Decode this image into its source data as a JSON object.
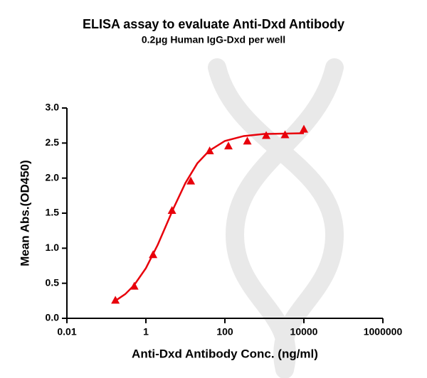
{
  "chart_data": {
    "type": "scatter",
    "title": "ELISA assay to evaluate Anti-Dxd Antibody",
    "subtitle": "0.2μg Human IgG-Dxd per well",
    "x_label": "Anti-Dxd Antibody Conc. (ng/ml)",
    "y_label": "Mean Abs.(OD450)",
    "x_scale": "log",
    "xlim": [
      0.01,
      1000000
    ],
    "xticks": [
      0.01,
      1,
      100,
      10000,
      1000000
    ],
    "ylim": [
      0,
      3
    ],
    "yticks": [
      {
        "value": 0,
        "label": "0.0"
      },
      0.5,
      {
        "value": 1,
        "label": "1.0"
      },
      1.5,
      {
        "value": 2,
        "label": "2.0"
      },
      2.5,
      {
        "value": 3,
        "label": "3.0"
      }
    ],
    "series": [
      {
        "type": "scatter",
        "marker": "triangle",
        "color": "#e8000b",
        "x": [
          0.169,
          0.508,
          1.52,
          4.57,
          13.7,
          41.2,
          123,
          370,
          1111,
          3333,
          10000
        ],
        "values": [
          0.26,
          0.46,
          0.91,
          1.54,
          1.96,
          2.39,
          2.46,
          2.53,
          2.61,
          2.62,
          2.7
        ]
      },
      {
        "type": "line",
        "color": "#e8000b",
        "x": [
          0.169,
          0.3,
          0.5,
          1,
          2,
          3,
          5,
          10,
          20,
          40,
          100,
          300,
          1000,
          10000
        ],
        "values": [
          0.25,
          0.345,
          0.47,
          0.715,
          1.05,
          1.28,
          1.57,
          1.93,
          2.21,
          2.39,
          2.53,
          2.6,
          2.63,
          2.64
        ]
      }
    ]
  }
}
